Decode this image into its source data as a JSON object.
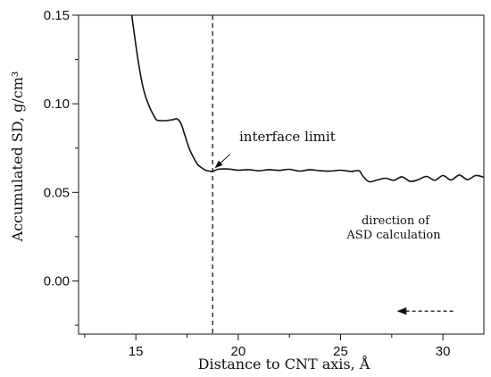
{
  "chart_data": {
    "type": "line",
    "xlabel": "Distance to CNT axis, Å",
    "ylabel": "Accumulated SD, g/cm³",
    "xlim": [
      12.2,
      32
    ],
    "ylim": [
      -0.03,
      0.15
    ],
    "x_ticks": [
      15,
      20,
      25,
      30
    ],
    "y_ticks": [
      0.0,
      0.05,
      0.1,
      0.15
    ],
    "x_tick_labels": [
      "15",
      "20",
      "25",
      "30"
    ],
    "y_tick_labels": [
      "0.00",
      "0.05",
      "0.10",
      "0.15"
    ],
    "grid": false,
    "series": [
      {
        "x": [
          14.8,
          15.0,
          15.2,
          15.4,
          15.6,
          15.8,
          16.0,
          16.2,
          16.5,
          16.8,
          17.0,
          17.2,
          17.4,
          17.6,
          17.8,
          18.0,
          18.2,
          18.4,
          18.6,
          18.75,
          19.0,
          19.5,
          20.0,
          20.5,
          21.0,
          21.5,
          22.0,
          22.5,
          23.0,
          23.5,
          24.0,
          24.5,
          25.0,
          25.5,
          25.9,
          26.1,
          26.4,
          26.8,
          27.2,
          27.6,
          28.0,
          28.4,
          28.8,
          29.2,
          29.6,
          30.0,
          30.4,
          30.8,
          31.2,
          31.6,
          32.0
        ],
        "y": [
          0.15,
          0.133,
          0.118,
          0.107,
          0.1,
          0.095,
          0.091,
          0.0905,
          0.0905,
          0.091,
          0.0915,
          0.089,
          0.082,
          0.075,
          0.07,
          0.066,
          0.064,
          0.0625,
          0.062,
          0.0618,
          0.063,
          0.0632,
          0.0625,
          0.0628,
          0.0622,
          0.0628,
          0.0624,
          0.063,
          0.062,
          0.0628,
          0.0622,
          0.062,
          0.0625,
          0.0618,
          0.0622,
          0.059,
          0.056,
          0.057,
          0.058,
          0.0568,
          0.0588,
          0.0562,
          0.0572,
          0.059,
          0.0568,
          0.0595,
          0.057,
          0.0598,
          0.0572,
          0.0595,
          0.0585
        ]
      }
    ],
    "vline": {
      "x": 18.75,
      "style": "dashed"
    },
    "annotations": [
      {
        "text": "interface limit",
        "arrow_from": [
          19.6,
          0.0715
        ],
        "arrow_to": [
          18.8,
          0.063
        ]
      },
      {
        "text": "direction of",
        "position": "right-middle"
      },
      {
        "text": "ASD calculation",
        "position": "right-middle"
      },
      {
        "text": "",
        "type": "dashed-arrow",
        "from": [
          30.5,
          -0.017
        ],
        "to": [
          27.8,
          -0.017
        ]
      }
    ]
  }
}
